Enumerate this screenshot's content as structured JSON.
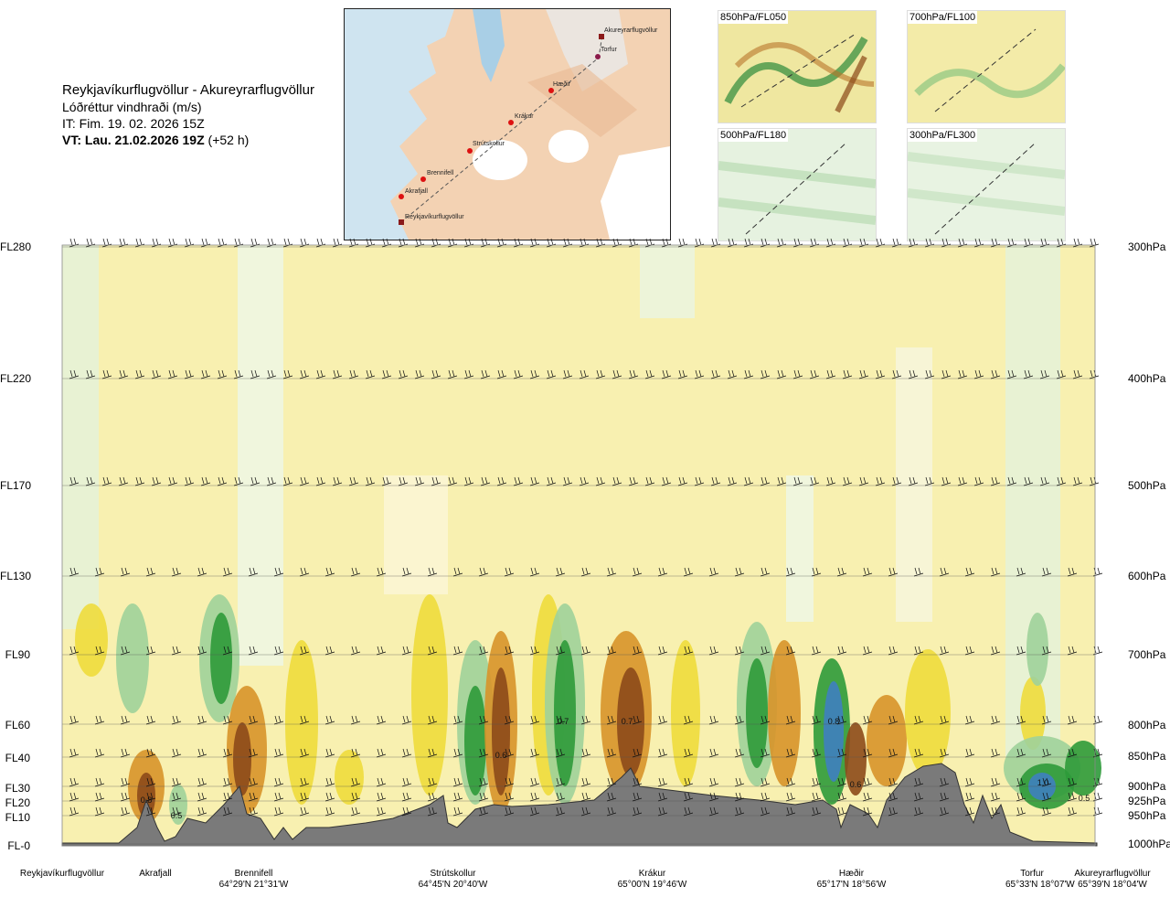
{
  "header": {
    "route": "Reykjavíkurflugvöllur - Akureyrarflugvöllur",
    "parameter": "Lóðréttur vindhraði (m/s)",
    "issue_time": "IT: Fim. 19. 02. 2026 15Z",
    "valid_prefix": "VT: Lau. 21.02.2026 19Z",
    "valid_suffix": "(+52 h)"
  },
  "map": {
    "points": [
      "Akureyrarflugvöllur",
      "Torfur",
      "Hæðir",
      "Krákur",
      "Strútskollur",
      "Brennifell",
      "Akrafjall",
      "Reykjavíkurflugvöllur"
    ]
  },
  "thumbnails": [
    {
      "label": "850hPa/FL050"
    },
    {
      "label": "700hPa/FL100"
    },
    {
      "label": "500hPa/FL180"
    },
    {
      "label": "300hPa/FL300"
    }
  ],
  "chart_data": {
    "type": "heatmap",
    "title": "Lóðréttur vindhraði (m/s)",
    "flight_levels": [
      "FL280",
      "FL220",
      "FL170",
      "FL130",
      "FL90",
      "FL60",
      "FL40",
      "FL30",
      "FL20",
      "FL10",
      "FL-0"
    ],
    "pressure_levels": [
      "300hPa",
      "400hPa",
      "500hPa",
      "600hPa",
      "700hPa",
      "800hPa",
      "850hPa",
      "900hPa",
      "925hPa",
      "950hPa",
      "1000hPa"
    ],
    "stations": [
      {
        "name": "Reykjavíkurflugvöllur",
        "coord": ""
      },
      {
        "name": "Akrafjall",
        "coord": ""
      },
      {
        "name": "Brennifell",
        "coord": "64°29'N 21°31'W"
      },
      {
        "name": "Strútskollur",
        "coord": "64°45'N 20°40'W"
      },
      {
        "name": "Krákur",
        "coord": "65°00'N 19°46'W"
      },
      {
        "name": "Hæðir",
        "coord": "65°17'N 18°56'W"
      },
      {
        "name": "Torfur",
        "coord": "65°33'N 18°07'W"
      },
      {
        "name": "Akureyrarflugvöllur",
        "coord": "65°39'N 18°04'W"
      }
    ],
    "value_labels": [
      "0.8",
      "0.5",
      "0.6",
      "0.7",
      "0.7",
      "0.8",
      "0.6",
      "1.0",
      "0.5"
    ],
    "colors": {
      "strong_down": "#8c4a1a",
      "moderate_down": "#d7932a",
      "weak_down": "#eedc3c",
      "very_weak_down": "#f4eea0",
      "neutral": "#ffffe6",
      "very_weak_up": "#d9eed8",
      "weak_up": "#9fd19a",
      "moderate_up": "#2e9a3a",
      "strong_up": "#1f6e2a",
      "very_strong_up": "#3f7fbf",
      "terrain": "#7a7a7a"
    }
  }
}
